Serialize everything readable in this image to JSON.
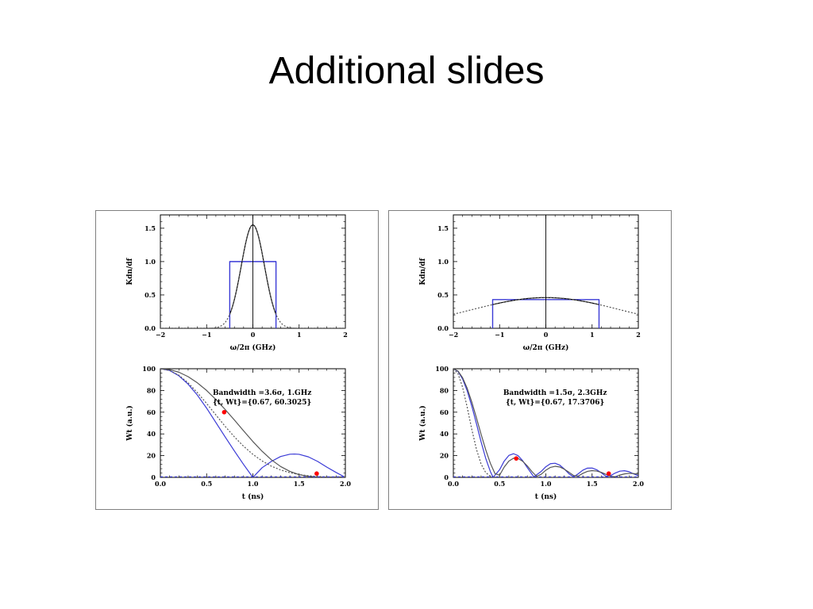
{
  "slide": {
    "title": "Additional slides"
  },
  "colors": {
    "blue": "#3a3ad6",
    "black": "#000000",
    "gray": "#555555",
    "dotted": "#555555",
    "marker": "#ff0000"
  },
  "chart_data": [
    {
      "id": "left-top",
      "type": "line",
      "xlabel": "ω/2π (GHz)",
      "ylabel": "Kdn/df",
      "xlim": [
        -2,
        2
      ],
      "ylim": [
        0,
        1.7
      ],
      "xticks": [
        "−2",
        "−1",
        "0",
        "1",
        "2"
      ],
      "yticks": [
        "0.0",
        "0.5",
        "1.0",
        "1.5"
      ],
      "series": [
        {
          "style": "blue-rect",
          "x": [
            -0.5,
            -0.5,
            0.5,
            0.5
          ],
          "y": [
            0,
            1.0,
            1.0,
            0
          ]
        },
        {
          "style": "black-solid",
          "gauss": {
            "amp": 1.55,
            "sigma": 0.25,
            "xmin": -0.5,
            "xmax": 0.5
          }
        },
        {
          "style": "gray-dotted",
          "gauss": {
            "amp": 1.55,
            "sigma": 0.25,
            "xmin": -2,
            "xmax": 2
          }
        },
        {
          "style": "center-line",
          "x": [
            0,
            0
          ],
          "y": [
            0,
            1.7
          ]
        }
      ]
    },
    {
      "id": "right-top",
      "type": "line",
      "xlabel": "ω/2π (GHz)",
      "ylabel": "Kdn/df",
      "xlim": [
        -2,
        2
      ],
      "ylim": [
        0,
        1.7
      ],
      "xticks": [
        "−2",
        "−1",
        "0",
        "1",
        "2"
      ],
      "yticks": [
        "0.0",
        "0.5",
        "1.0",
        "1.5"
      ],
      "series": [
        {
          "style": "blue-rect",
          "x": [
            -1.15,
            -1.15,
            1.15,
            1.15
          ],
          "y": [
            0,
            0.43,
            0.43,
            0
          ]
        },
        {
          "style": "black-solid",
          "gauss": {
            "amp": 0.46,
            "sigma": 1.6,
            "xmin": -1.15,
            "xmax": 1.15
          }
        },
        {
          "style": "gray-dotted",
          "gauss": {
            "amp": 0.46,
            "sigma": 1.6,
            "xmin": -2,
            "xmax": 2
          }
        },
        {
          "style": "center-line",
          "x": [
            0,
            0
          ],
          "y": [
            0,
            1.7
          ]
        }
      ]
    },
    {
      "id": "left-bottom",
      "type": "line",
      "xlabel": "t (ns)",
      "ylabel": "Wt (a.u.)",
      "xlim": [
        0,
        2
      ],
      "ylim": [
        0,
        100
      ],
      "xticks": [
        "0.0",
        "0.5",
        "1.0",
        "1.5",
        "2.0"
      ],
      "yticks": [
        "0",
        "20",
        "40",
        "60",
        "80",
        "100"
      ],
      "annotation": {
        "line1": "Bandwidth =3.6σ, 1.GHz",
        "line2": "{t, Wt}={0.67, 60.3025}"
      },
      "series": [
        {
          "style": "blue-solid",
          "x": [
            0,
            0.1,
            0.2,
            0.3,
            0.4,
            0.5,
            0.6,
            0.7,
            0.8,
            0.9,
            1.0,
            1.1,
            1.2,
            1.3,
            1.4,
            1.45,
            1.5,
            1.6,
            1.7,
            1.8,
            1.9,
            2.0
          ],
          "y": [
            100,
            98.4,
            93.5,
            85.8,
            75.7,
            63.7,
            50.5,
            37.3,
            24.3,
            11.8,
            0,
            8.9,
            14.7,
            19.2,
            21.3,
            21.5,
            21.2,
            18.9,
            14.7,
            9.4,
            4.5,
            0
          ]
        },
        {
          "style": "gray-solid",
          "x": [
            0,
            0.1,
            0.2,
            0.3,
            0.4,
            0.5,
            0.6,
            0.7,
            0.8,
            0.9,
            1.0,
            1.1,
            1.2,
            1.3,
            1.4,
            1.5,
            1.6,
            1.7,
            1.8,
            1.9,
            2.0
          ],
          "y": [
            100,
            99.2,
            96.8,
            92.7,
            87.0,
            80.0,
            71.7,
            62.5,
            52.8,
            42.8,
            33.0,
            24.0,
            16.2,
            10.0,
            5.5,
            2.5,
            0.9,
            0.3,
            0.3,
            0.4,
            0.5
          ]
        },
        {
          "style": "gray-dotted",
          "x": [
            0,
            0.1,
            0.2,
            0.3,
            0.4,
            0.5,
            0.6,
            0.7,
            0.8,
            0.9,
            1.0,
            1.1,
            1.2,
            1.3,
            1.4,
            1.5,
            1.6,
            1.7,
            1.8,
            1.9,
            2.0
          ],
          "y": [
            100,
            98.4,
            94.0,
            87.0,
            78.0,
            68.0,
            57.5,
            47.0,
            37.3,
            28.6,
            21.2,
            15.1,
            10.3,
            6.8,
            4.3,
            2.6,
            1.5,
            0.8,
            0.4,
            0.2,
            0.1
          ]
        },
        {
          "style": "blue-dashed-baseline",
          "x": [
            0,
            2
          ],
          "y": [
            0.5,
            0.5
          ]
        }
      ],
      "markers": [
        {
          "x": 0.69,
          "y": 60
        },
        {
          "x": 1.69,
          "y": 3.5
        }
      ]
    },
    {
      "id": "right-bottom",
      "type": "line",
      "xlabel": "t (ns)",
      "ylabel": "Wt (a.u.)",
      "xlim": [
        0,
        2
      ],
      "ylim": [
        0,
        100
      ],
      "xticks": [
        "0.0",
        "0.5",
        "1.0",
        "1.5",
        "2.0"
      ],
      "yticks": [
        "0",
        "20",
        "40",
        "60",
        "80",
        "100"
      ],
      "annotation": {
        "line1": "Bandwidth =1.5σ, 2.3GHz",
        "line2": "{t, Wt}={0.67, 17.3706}"
      },
      "series": [
        {
          "style": "blue-solid",
          "x": [
            0,
            0.05,
            0.1,
            0.15,
            0.2,
            0.25,
            0.3,
            0.35,
            0.4,
            0.43,
            0.5,
            0.55,
            0.6,
            0.65,
            0.7,
            0.75,
            0.8,
            0.87,
            0.95,
            1.0,
            1.05,
            1.1,
            1.15,
            1.2,
            1.25,
            1.3,
            1.35,
            1.4,
            1.45,
            1.5,
            1.55,
            1.6,
            1.65,
            1.7,
            1.75,
            1.8,
            1.85,
            1.9,
            1.95,
            2.0
          ],
          "y": [
            100,
            97.6,
            90.6,
            79.6,
            65.4,
            49.3,
            32.7,
            17.5,
            5.4,
            0,
            7.0,
            15.0,
            20.2,
            21.8,
            20.0,
            15.3,
            8.9,
            0.5,
            5.5,
            9.8,
            12.6,
            13.0,
            11.3,
            7.7,
            3.3,
            0.4,
            3.3,
            6.6,
            8.5,
            8.6,
            7.0,
            4.2,
            1.0,
            1.6,
            4.0,
            5.7,
            6.1,
            5.2,
            3.2,
            1.5
          ]
        },
        {
          "style": "gray-solid",
          "x": [
            0,
            0.05,
            0.1,
            0.15,
            0.2,
            0.25,
            0.3,
            0.35,
            0.4,
            0.45,
            0.5,
            0.55,
            0.6,
            0.65,
            0.7,
            0.75,
            0.8,
            0.85,
            0.9,
            0.95,
            1.0,
            1.05,
            1.1,
            1.15,
            1.2,
            1.25,
            1.3,
            1.35,
            1.4,
            1.45,
            1.5,
            1.55,
            1.6,
            1.65,
            1.7,
            1.75,
            1.8,
            1.85,
            1.9,
            1.95,
            2.0
          ],
          "y": [
            100,
            97.9,
            91.7,
            81.9,
            69.2,
            54.7,
            39.7,
            25.4,
            13.0,
            3.5,
            2.0,
            9.5,
            15.0,
            17.6,
            17.4,
            14.8,
            10.5,
            5.3,
            0.9,
            2.9,
            6.6,
            9.2,
            10.2,
            9.6,
            7.5,
            4.7,
            1.7,
            1.2,
            3.7,
            5.5,
            6.2,
            5.8,
            4.6,
            2.8,
            1.0,
            0.6,
            2.1,
            3.2,
            3.7,
            3.5,
            2.8
          ]
        },
        {
          "style": "gray-dotted",
          "x": [
            0,
            0.05,
            0.1,
            0.15,
            0.2,
            0.25,
            0.3,
            0.35,
            0.4,
            0.45,
            0.5,
            0.6,
            0.8,
            1.0,
            1.5,
            2.0
          ],
          "y": [
            100,
            95.5,
            83.0,
            64.5,
            44.0,
            25.8,
            12.3,
            4.4,
            1.0,
            0.2,
            0.1,
            0.0,
            0.0,
            0.0,
            0.0,
            0.0
          ]
        },
        {
          "style": "blue-dashed-baseline",
          "x": [
            0,
            2
          ],
          "y": [
            0.5,
            0.5
          ]
        }
      ],
      "markers": [
        {
          "x": 0.68,
          "y": 17.4
        },
        {
          "x": 1.68,
          "y": 3.5
        }
      ]
    }
  ]
}
